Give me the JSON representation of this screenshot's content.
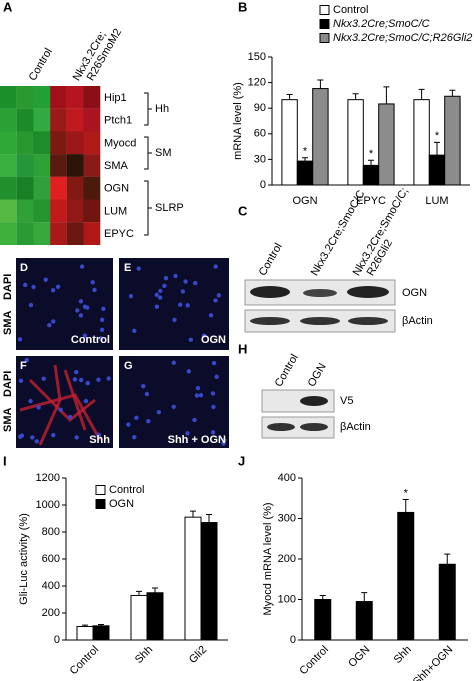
{
  "panel_letters": [
    "A",
    "B",
    "C",
    "D",
    "E",
    "F",
    "G",
    "H",
    "I",
    "J"
  ],
  "heatmap": {
    "columns": [
      "Control",
      [
        "Nkx3.2Cre;",
        "R26SmoM2"
      ]
    ],
    "rows": [
      "Hip1",
      "Ptch1",
      "Myocd",
      "SMA",
      "OGN",
      "LUM",
      "EPYC"
    ],
    "groups": [
      "Hh",
      "SM",
      "SLRP"
    ]
  },
  "blot_c": {
    "columns": [
      "Control",
      "Nkx3.2Cre;SmoC/C",
      [
        "Nkx3.2Cre;SmoC/C;",
        "R26Gli2"
      ]
    ],
    "bands": [
      "OGN",
      "βActin"
    ]
  },
  "micrographs": {
    "stain": [
      "SMA",
      "DAPI"
    ],
    "conditions": [
      "Control",
      "OGN",
      "Shh",
      "Shh + OGN"
    ]
  },
  "blot_h": {
    "columns": [
      "Control",
      "OGN"
    ],
    "bands": [
      "V5",
      "βActin"
    ]
  },
  "chart_data": [
    {
      "type": "bar",
      "ylabel": "mRNA level (%)",
      "categories": [
        "OGN",
        "EPYC",
        "LUM"
      ],
      "series": [
        {
          "name": "Control",
          "color": "#ffffff",
          "values": [
            100,
            100,
            100
          ],
          "errors": [
            6,
            7,
            12
          ]
        },
        {
          "name": "Nkx3.2Cre;SmoC/C",
          "color": "#000000",
          "values": [
            28,
            23,
            35
          ],
          "errors": [
            4,
            6,
            15
          ],
          "significance": [
            "*",
            "*",
            "*"
          ]
        },
        {
          "name": "Nkx3.2Cre;SmoC/C;R26Gli2",
          "color": "#8c8c8c",
          "values": [
            113,
            95,
            104
          ],
          "errors": [
            10,
            20,
            7
          ]
        }
      ],
      "ylim": [
        0,
        150
      ],
      "yticks": [
        0,
        30,
        60,
        90,
        120,
        150
      ]
    },
    {
      "type": "bar",
      "ylabel": "Gli-Luc activity (%)",
      "categories": [
        "Control",
        "Shh",
        "Gli2"
      ],
      "series": [
        {
          "name": "Control",
          "color": "#ffffff",
          "values": [
            100,
            330,
            910
          ],
          "errors": [
            10,
            30,
            45
          ]
        },
        {
          "name": "OGN",
          "color": "#000000",
          "values": [
            105,
            350,
            870
          ],
          "errors": [
            10,
            35,
            60
          ]
        }
      ],
      "ylim": [
        0,
        1200
      ],
      "yticks": [
        0,
        200,
        400,
        600,
        800,
        1000,
        1200
      ]
    },
    {
      "type": "bar",
      "ylabel": "Myocd mRNA level (%)",
      "categories": [
        "Control",
        "OGN",
        "Shh",
        "Shh+OGN"
      ],
      "series": [
        {
          "color": "#000000",
          "values": [
            100,
            95,
            315,
            187
          ],
          "errors": [
            10,
            22,
            32,
            25
          ],
          "significance": [
            null,
            null,
            "*",
            null
          ]
        }
      ],
      "ylim": [
        0,
        400
      ],
      "yticks": [
        0,
        100,
        200,
        300,
        400
      ]
    }
  ]
}
